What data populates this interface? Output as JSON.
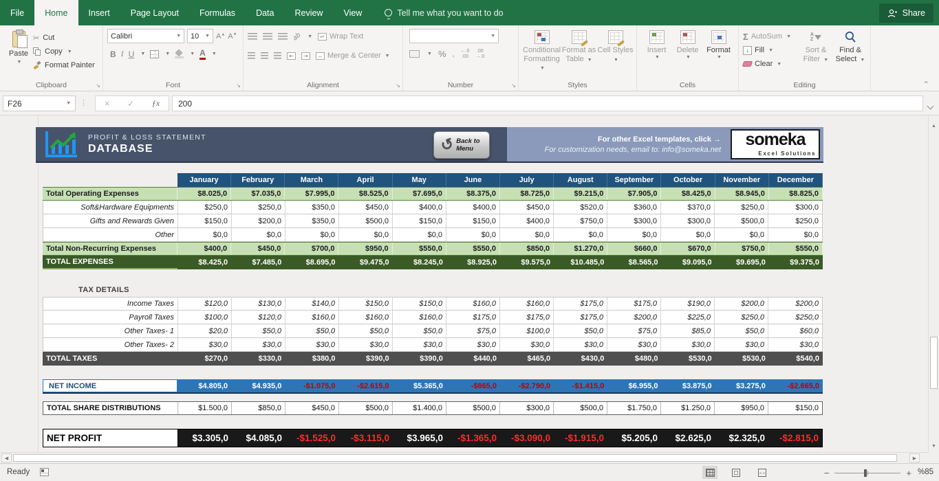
{
  "titlebar": {
    "tabs": [
      "File",
      "Home",
      "Insert",
      "Page Layout",
      "Formulas",
      "Data",
      "Review",
      "View"
    ],
    "active_tab": "Home",
    "tell_me": "Tell me what you want to do",
    "share_label": "Share"
  },
  "ribbon": {
    "clipboard": {
      "group_label": "Clipboard",
      "paste": "Paste",
      "cut": "Cut",
      "copy": "Copy",
      "format_painter": "Format Painter"
    },
    "font": {
      "group_label": "Font",
      "font_name": "Calibri",
      "font_size": "10",
      "bold": "B",
      "italic": "I",
      "underline": "U",
      "grow": "A",
      "shrink": "A"
    },
    "alignment": {
      "group_label": "Alignment",
      "wrap_text": "Wrap Text",
      "merge_center": "Merge & Center",
      "orientation": "ab"
    },
    "number": {
      "group_label": "Number",
      "percent": "%",
      "comma": ",",
      "inc_decimal": "←.0",
      "dec_decimal": "→.0",
      "decimals": ".00"
    },
    "styles": {
      "group_label": "Styles",
      "conditional": "Conditional Formatting",
      "format_table": "Format as Table",
      "cell_styles": "Cell Styles"
    },
    "cells": {
      "group_label": "Cells",
      "insert": "Insert",
      "delete": "Delete",
      "format": "Format"
    },
    "editing": {
      "group_label": "Editing",
      "autosum": "AutoSum",
      "autosum_sigma": "Σ",
      "fill": "Fill",
      "fill_arrow": "↓",
      "clear": "Clear",
      "sort_filter": "Sort & Filter",
      "find_select": "Find & Select",
      "az": "A Z"
    }
  },
  "formula_bar": {
    "cell_ref": "F26",
    "value": "200",
    "fx": "ƒx",
    "cancel": "×",
    "enter": "✓"
  },
  "banner": {
    "title_line1": "PROFIT & LOSS STATEMENT",
    "title_line2": "DATABASE",
    "back_button": "Back to Menu",
    "promo_line1": "For other Excel templates, click →",
    "promo_line2": "For customization needs, email to: info@someka.net",
    "logo_text": "someka",
    "logo_sub": "Excel Solutions"
  },
  "table": {
    "months": [
      "January",
      "February",
      "March",
      "April",
      "May",
      "June",
      "July",
      "August",
      "September",
      "October",
      "November",
      "December"
    ],
    "rows": [
      {
        "type": "green",
        "label": "Total Operating Expenses",
        "values": [
          "$8.025,0",
          "$7.035,0",
          "$7.995,0",
          "$8.525,0",
          "$7.695,0",
          "$8.375,0",
          "$8.725,0",
          "$9.215,0",
          "$7.905,0",
          "$8.425,0",
          "$8.945,0",
          "$8.825,0"
        ]
      },
      {
        "type": "detail",
        "label": "Soft&Hardware Equipments",
        "values": [
          "$250,0",
          "$250,0",
          "$350,0",
          "$450,0",
          "$400,0",
          "$400,0",
          "$450,0",
          "$520,0",
          "$360,0",
          "$370,0",
          "$250,0",
          "$300,0"
        ]
      },
      {
        "type": "detail",
        "label": "Gifts and Rewards Given",
        "values": [
          "$150,0",
          "$200,0",
          "$350,0",
          "$500,0",
          "$150,0",
          "$150,0",
          "$400,0",
          "$750,0",
          "$300,0",
          "$300,0",
          "$500,0",
          "$250,0"
        ]
      },
      {
        "type": "detail",
        "label": "Other",
        "values": [
          "$0,0",
          "$0,0",
          "$0,0",
          "$0,0",
          "$0,0",
          "$0,0",
          "$0,0",
          "$0,0",
          "$0,0",
          "$0,0",
          "$0,0",
          "$0,0"
        ]
      },
      {
        "type": "green",
        "label": "Total Non-Recurring Expenses",
        "values": [
          "$400,0",
          "$450,0",
          "$700,0",
          "$950,0",
          "$550,0",
          "$550,0",
          "$850,0",
          "$1.270,0",
          "$660,0",
          "$670,0",
          "$750,0",
          "$550,0"
        ]
      },
      {
        "type": "darkgreen",
        "label": "TOTAL EXPENSES",
        "values": [
          "$8.425,0",
          "$7.485,0",
          "$8.695,0",
          "$9.475,0",
          "$8.245,0",
          "$8.925,0",
          "$9.575,0",
          "$10.485,0",
          "$8.565,0",
          "$9.095,0",
          "$9.695,0",
          "$9.375,0"
        ]
      },
      {
        "type": "gap"
      },
      {
        "type": "section",
        "label": "TAX DETAILS"
      },
      {
        "type": "tax",
        "label": "Income Taxes",
        "values": [
          "$120,0",
          "$130,0",
          "$140,0",
          "$150,0",
          "$150,0",
          "$160,0",
          "$160,0",
          "$175,0",
          "$175,0",
          "$190,0",
          "$200,0",
          "$200,0"
        ]
      },
      {
        "type": "tax",
        "label": "Payroll Taxes",
        "values": [
          "$100,0",
          "$120,0",
          "$160,0",
          "$160,0",
          "$160,0",
          "$175,0",
          "$175,0",
          "$175,0",
          "$200,0",
          "$225,0",
          "$250,0",
          "$250,0"
        ]
      },
      {
        "type": "tax",
        "label": "Other Taxes- 1",
        "values": [
          "$20,0",
          "$50,0",
          "$50,0",
          "$50,0",
          "$50,0",
          "$75,0",
          "$100,0",
          "$50,0",
          "$75,0",
          "$85,0",
          "$50,0",
          "$60,0"
        ]
      },
      {
        "type": "tax",
        "label": "Other Taxes- 2",
        "values": [
          "$30,0",
          "$30,0",
          "$30,0",
          "$30,0",
          "$30,0",
          "$30,0",
          "$30,0",
          "$30,0",
          "$30,0",
          "$30,0",
          "$30,0",
          "$30,0"
        ]
      },
      {
        "type": "darkgray",
        "label": "TOTAL TAXES",
        "values": [
          "$270,0",
          "$330,0",
          "$380,0",
          "$390,0",
          "$390,0",
          "$440,0",
          "$465,0",
          "$430,0",
          "$480,0",
          "$530,0",
          "$530,0",
          "$540,0"
        ]
      },
      {
        "type": "gap"
      },
      {
        "type": "netincome",
        "label": "NET INCOME",
        "values": [
          "$4.805,0",
          "$4.935,0",
          "-$1.075,0",
          "-$2.615,0",
          "$5.365,0",
          "-$865,0",
          "-$2.790,0",
          "-$1.415,0",
          "$6.955,0",
          "$3.875,0",
          "$3.275,0",
          "-$2.665,0"
        ]
      },
      {
        "type": "gapsm"
      },
      {
        "type": "share",
        "label": "TOTAL SHARE DISTRIBUTIONS",
        "values": [
          "$1.500,0",
          "$850,0",
          "$450,0",
          "$500,0",
          "$1.400,0",
          "$500,0",
          "$300,0",
          "$500,0",
          "$1.750,0",
          "$1.250,0",
          "$950,0",
          "$150,0"
        ]
      },
      {
        "type": "gap"
      },
      {
        "type": "netprofit",
        "label": "NET PROFIT",
        "values": [
          "$3.305,0",
          "$4.085,0",
          "-$1.525,0",
          "-$3.115,0",
          "$3.965,0",
          "-$1.365,0",
          "-$3.090,0",
          "-$1.915,0",
          "$5.205,0",
          "$2.625,0",
          "$2.325,0",
          "-$2.815,0"
        ]
      }
    ]
  },
  "status_bar": {
    "ready": "Ready",
    "zoom_percent": "%85"
  }
}
